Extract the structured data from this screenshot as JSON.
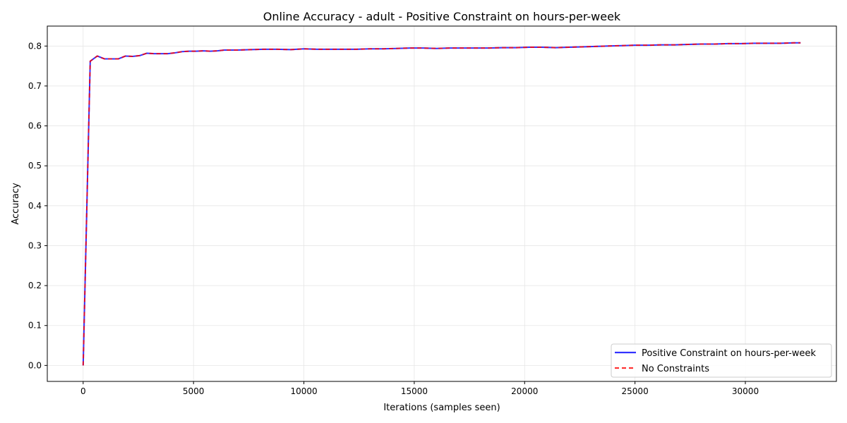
{
  "chart_data": {
    "type": "line",
    "title": "Online Accuracy - adult - Positive Constraint on hours-per-week",
    "xlabel": "Iterations (samples seen)",
    "ylabel": "Accuracy",
    "xlim": [
      -1625,
      34125
    ],
    "ylim": [
      -0.04,
      0.85
    ],
    "xticks": [
      0,
      5000,
      10000,
      15000,
      20000,
      25000,
      30000
    ],
    "xtick_labels": [
      "0",
      "5000",
      "10000",
      "15000",
      "20000",
      "25000",
      "30000"
    ],
    "yticks": [
      0.0,
      0.1,
      0.2,
      0.3,
      0.4,
      0.5,
      0.6,
      0.7,
      0.8
    ],
    "ytick_labels": [
      "0.0",
      "0.1",
      "0.2",
      "0.3",
      "0.4",
      "0.5",
      "0.6",
      "0.7",
      "0.8"
    ],
    "grid": true,
    "legend_position": "lower-right",
    "x": [
      0,
      320,
      640,
      960,
      1280,
      1600,
      1920,
      2240,
      2560,
      2880,
      3200,
      3520,
      3840,
      4160,
      4480,
      4800,
      5120,
      5440,
      5760,
      6080,
      6400,
      7000,
      7600,
      8200,
      8800,
      9400,
      10000,
      10600,
      11200,
      11800,
      12400,
      13000,
      13600,
      14200,
      14800,
      15400,
      16000,
      16600,
      17200,
      17800,
      18400,
      19000,
      19600,
      20200,
      20800,
      21400,
      22000,
      22600,
      23200,
      23800,
      24400,
      25000,
      25600,
      26200,
      26800,
      27400,
      28000,
      28600,
      29200,
      29800,
      30400,
      31000,
      31600,
      32200,
      32500
    ],
    "series": [
      {
        "name": "Positive Constraint on hours-per-week",
        "color": "#0000ff",
        "style": "solid",
        "values": [
          0.0,
          0.762,
          0.775,
          0.768,
          0.768,
          0.768,
          0.775,
          0.774,
          0.776,
          0.782,
          0.781,
          0.781,
          0.781,
          0.783,
          0.786,
          0.787,
          0.787,
          0.788,
          0.787,
          0.788,
          0.79,
          0.79,
          0.791,
          0.792,
          0.792,
          0.791,
          0.793,
          0.792,
          0.792,
          0.792,
          0.792,
          0.793,
          0.793,
          0.794,
          0.795,
          0.795,
          0.794,
          0.795,
          0.795,
          0.795,
          0.795,
          0.796,
          0.796,
          0.797,
          0.797,
          0.796,
          0.797,
          0.798,
          0.799,
          0.8,
          0.801,
          0.802,
          0.802,
          0.803,
          0.803,
          0.804,
          0.805,
          0.805,
          0.806,
          0.806,
          0.807,
          0.807,
          0.807,
          0.808,
          0.808
        ]
      },
      {
        "name": "No Constraints",
        "color": "#ff0000",
        "style": "dashed",
        "values": [
          0.0,
          0.762,
          0.775,
          0.768,
          0.768,
          0.768,
          0.775,
          0.774,
          0.776,
          0.782,
          0.781,
          0.781,
          0.781,
          0.783,
          0.786,
          0.787,
          0.787,
          0.788,
          0.787,
          0.788,
          0.79,
          0.79,
          0.791,
          0.792,
          0.792,
          0.791,
          0.793,
          0.792,
          0.792,
          0.792,
          0.792,
          0.793,
          0.793,
          0.794,
          0.795,
          0.795,
          0.794,
          0.795,
          0.795,
          0.795,
          0.795,
          0.796,
          0.796,
          0.797,
          0.797,
          0.796,
          0.797,
          0.798,
          0.799,
          0.8,
          0.801,
          0.802,
          0.802,
          0.803,
          0.803,
          0.804,
          0.805,
          0.805,
          0.806,
          0.806,
          0.807,
          0.807,
          0.807,
          0.808,
          0.808
        ]
      }
    ]
  }
}
